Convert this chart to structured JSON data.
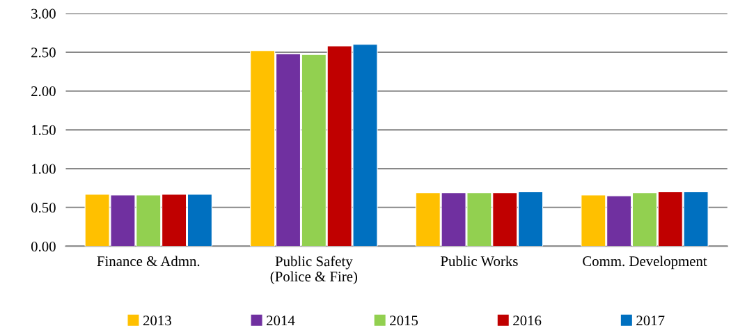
{
  "chart_data": {
    "type": "bar",
    "categories": [
      "Finance & Admn.",
      "Public Safety\n(Police & Fire)",
      "Public Works",
      "Comm. Development"
    ],
    "series": [
      {
        "name": "2013",
        "color": "#ffc000",
        "values": [
          0.67,
          2.52,
          0.69,
          0.66
        ]
      },
      {
        "name": "2014",
        "color": "#7030a0",
        "values": [
          0.66,
          2.48,
          0.69,
          0.65
        ]
      },
      {
        "name": "2015",
        "color": "#92d050",
        "values": [
          0.66,
          2.47,
          0.69,
          0.69
        ]
      },
      {
        "name": "2016",
        "color": "#c00000",
        "values": [
          0.67,
          2.58,
          0.69,
          0.7
        ]
      },
      {
        "name": "2017",
        "color": "#0070c0",
        "values": [
          0.67,
          2.6,
          0.7,
          0.7
        ]
      }
    ],
    "ylim": [
      0,
      3
    ],
    "yticks": [
      {
        "value": 0,
        "label": "0.00"
      },
      {
        "value": 0.5,
        "label": "0.50"
      },
      {
        "value": 1,
        "label": "1.00"
      },
      {
        "value": 1.5,
        "label": "1.50"
      },
      {
        "value": 2,
        "label": "2.00"
      },
      {
        "value": 2.5,
        "label": "2.50"
      },
      {
        "value": 3,
        "label": "3.00"
      }
    ],
    "grid": "y",
    "legend": "bottom"
  }
}
